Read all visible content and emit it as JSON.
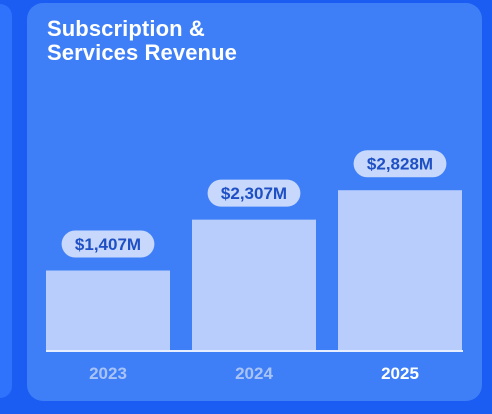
{
  "card": {
    "title": "Subscription &\nServices Revenue"
  },
  "colors": {
    "background": "#1b5cf2",
    "card": "#3e7ff7",
    "bar": "#b8cdfb",
    "label_pill": "#c7d8fc",
    "label_text": "#1e4fc4",
    "tick_muted": "#a9c3f7",
    "tick_highlight": "#ffffff"
  },
  "chart_data": {
    "type": "bar",
    "title": "Subscription & Services Revenue",
    "xlabel": "",
    "ylabel": "",
    "categories": [
      "2023",
      "2024",
      "2025"
    ],
    "values": [
      1407,
      2307,
      2828
    ],
    "value_labels": [
      "$1,407M",
      "$2,307M",
      "$2,828M"
    ],
    "unit": "$M",
    "highlight_category": "2025",
    "ylim": [
      0,
      3200
    ],
    "grid": false,
    "legend": "none"
  }
}
